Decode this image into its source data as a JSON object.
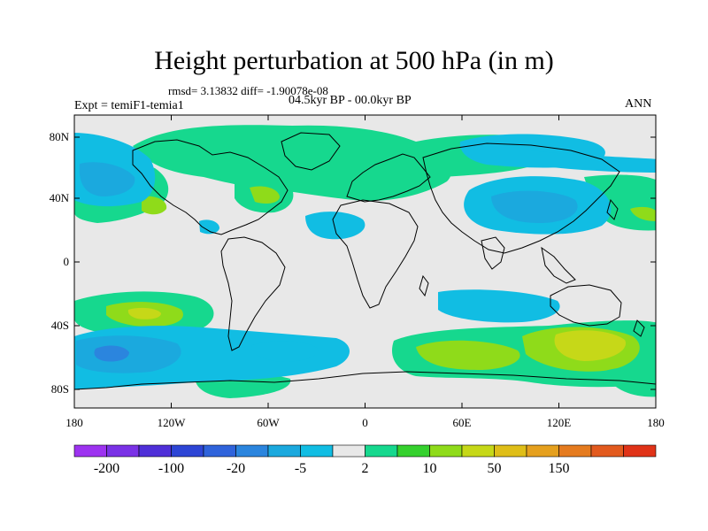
{
  "title": "Height perturbation at 500 hPa (in m)",
  "stats": "rmsd= 3.13832 diff= -1.90078e-08",
  "period": "04.5kyr BP - 00.0kyr BP",
  "expt": "Expt = temiF1-temia1",
  "season": "ANN",
  "lat_ticks": [
    "80N",
    "40N",
    "0",
    "40S",
    "80S"
  ],
  "lon_ticks": [
    "180",
    "120W",
    "60W",
    "0",
    "60E",
    "120E",
    "180"
  ],
  "colorbar": {
    "colors": [
      "#9d33f0",
      "#7a32e6",
      "#4f2fd8",
      "#2d45d5",
      "#2f63db",
      "#2b85de",
      "#1ba9de",
      "#11bde3",
      "#e8e8e8",
      "#16d88e",
      "#35d12e",
      "#8fdb1a",
      "#c6d818",
      "#dfbe18",
      "#e5a01e",
      "#e57b1f",
      "#e25a1e",
      "#e03318"
    ],
    "tick_labels": [
      "-200",
      "-100",
      "-20",
      "-5",
      "2",
      "10",
      "50",
      "150"
    ]
  },
  "palette": {
    "background": "#e8e8e8",
    "cyan": "#11bde3",
    "blue": "#1ba9de",
    "deep_blue": "#2b85de",
    "green": "#16d88e",
    "lime": "#8fdb1a",
    "yellow_green": "#c6d818"
  }
}
